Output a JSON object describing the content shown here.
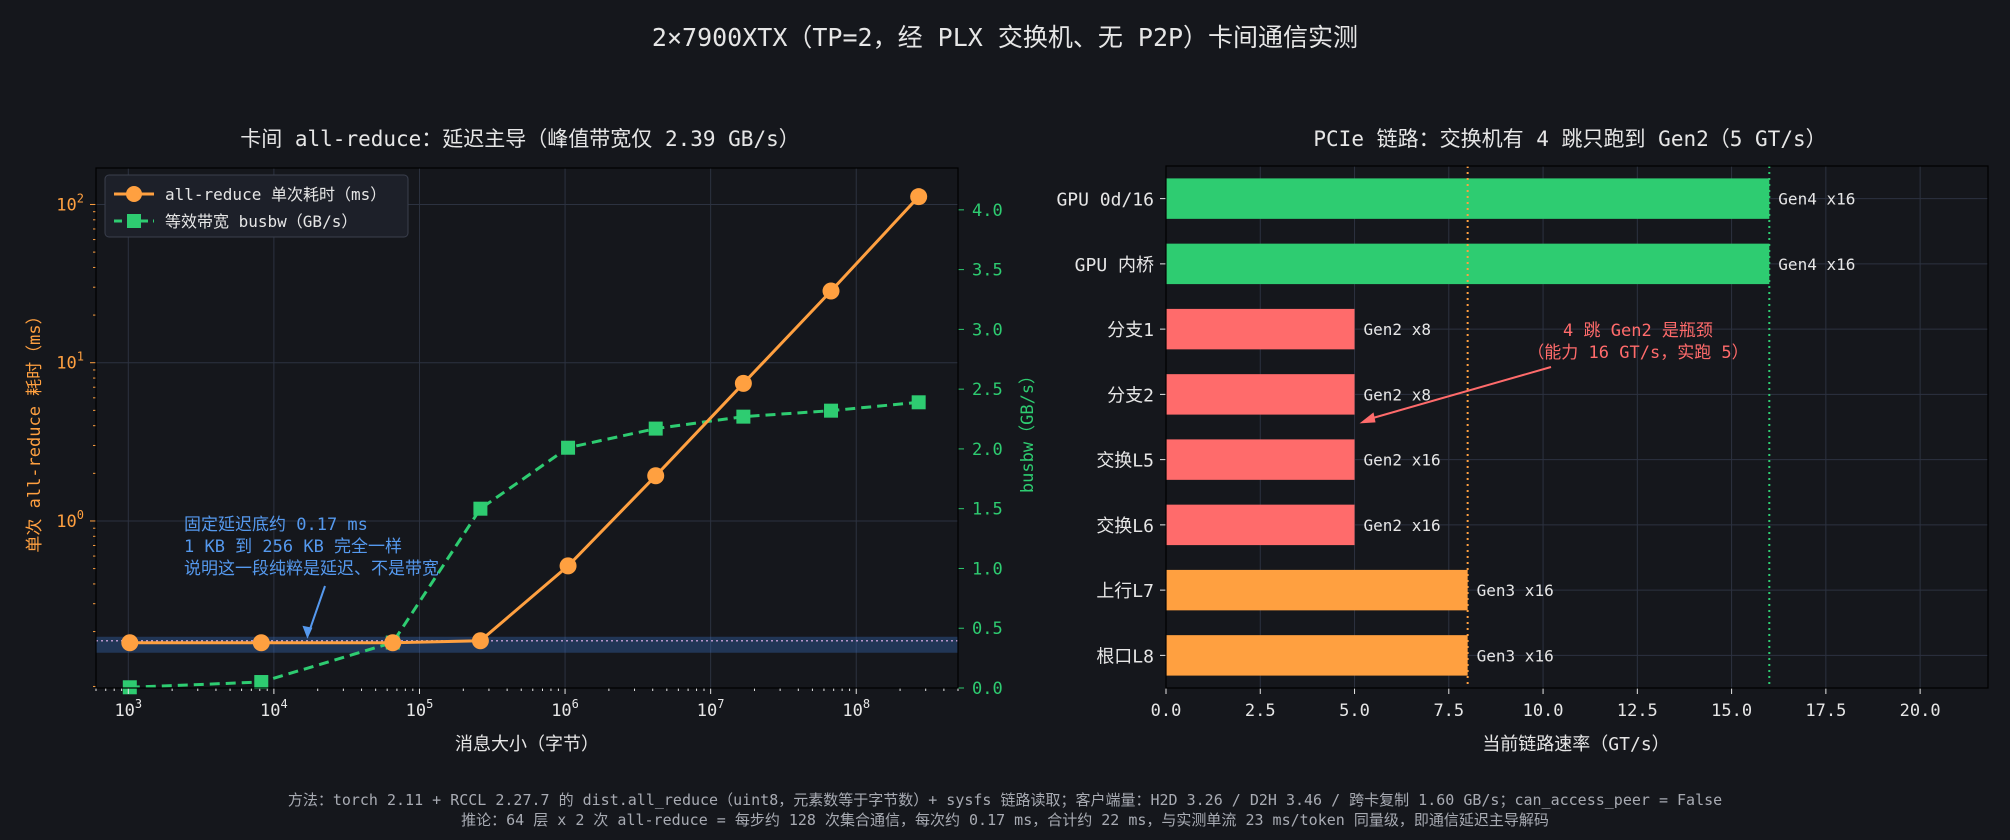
{
  "figure": {
    "title": "2×7900XTX（TP=2，经 PLX 交换机、无 P2P）卡间通信实测",
    "footer_line1": "方法：torch 2.11 + RCCL 2.27.7 的 dist.all_reduce（uint8，元素数等于字节数）+ sysfs 链路读取；客户端量：H2D 3.26 / D2H 3.46 / 跨卡复制 1.60 GB/s；can_access_peer = False",
    "footer_line2": "推论：64 层 x 2 次 all-reduce = 每步约 128 次集合通信，每次约 0.17 ms，合计约 22 ms，与实测单流 23 ms/token 同量级，即通信延迟主导解码",
    "colors": {
      "background": "#15171c",
      "axes_bg": "#15171c",
      "grid": "#2c3240",
      "orange": "#ffa040",
      "green": "#2ecc71",
      "red": "#ff6b6b",
      "blue": "#5599ee",
      "text": "#e6e6e6"
    }
  },
  "chart_data": [
    {
      "type": "line",
      "title": "卡间 all-reduce：延迟主导（峰值带宽仅 2.39 GB/s）",
      "xlabel": "消息大小（字节）",
      "ylabel_left": "单次 all-reduce 耗时（ms）",
      "ylabel_right": "busbw（GB/s）",
      "x_scale": "log",
      "y_left_scale": "log",
      "x_ticks": [
        "10^3",
        "10^4",
        "10^5",
        "10^6",
        "10^7",
        "10^8"
      ],
      "y_left_ticks": [
        "10^0",
        "10^1",
        "10^2"
      ],
      "y_right_ticks": [
        "0.0",
        "0.5",
        "1.0",
        "1.5",
        "2.0",
        "2.5",
        "3.0",
        "3.5",
        "4.0"
      ],
      "xlim": [
        600,
        500000000
      ],
      "ylim_left": [
        0.088,
        170
      ],
      "ylim_right": [
        0,
        4.35
      ],
      "grid": true,
      "legend_position": "upper-left",
      "series": [
        {
          "name": "all-reduce 单次耗时（ms）",
          "axis": "left",
          "color": "#ffa040",
          "style": "solid",
          "marker": "circle",
          "x": [
            1024,
            8192,
            65536,
            262144,
            1048576,
            4194304,
            16777216,
            67108864,
            268435456
          ],
          "y": [
            0.17,
            0.17,
            0.17,
            0.175,
            0.52,
            1.93,
            7.4,
            28.4,
            112
          ]
        },
        {
          "name": "等效带宽 busbw（GB/s）",
          "axis": "right",
          "color": "#2ecc71",
          "style": "dashed",
          "marker": "square",
          "x": [
            1024,
            8192,
            65536,
            262144,
            1048576,
            4194304,
            16777216,
            67108864,
            268435456
          ],
          "y": [
            0.006,
            0.05,
            0.38,
            1.5,
            2.01,
            2.17,
            2.27,
            2.32,
            2.39
          ]
        }
      ],
      "floor_band_ms": 0.17,
      "annotation": {
        "lines": [
          "固定延迟底约 0.17 ms",
          "1 KB 到 256 KB 完全一样",
          "说明这一段纯粹是延迟、不是带宽"
        ],
        "arrow_to": {
          "x": 17000,
          "y": 0.17
        }
      }
    },
    {
      "type": "bar",
      "orientation": "horizontal",
      "title": "PCIe 链路：交换机有 4 跳只跑到 Gen2（5 GT/s）",
      "xlabel": "当前链路速率（GT/s）",
      "x_ticks": [
        "0.0",
        "2.5",
        "5.0",
        "7.5",
        "10.0",
        "12.5",
        "15.0",
        "17.5",
        "20.0"
      ],
      "xlim": [
        0,
        21.8
      ],
      "grid": true,
      "categories": [
        "GPU 0d/16",
        "GPU 内桥",
        "分支1",
        "分支2",
        "交换L5",
        "交换L6",
        "上行L7",
        "根口L8"
      ],
      "values": [
        16,
        16,
        5,
        5,
        5,
        5,
        8,
        8
      ],
      "bar_labels": [
        "Gen4 x16",
        "Gen4 x16",
        "Gen2 x8",
        "Gen2 x8",
        "Gen2 x16",
        "Gen2 x16",
        "Gen3 x16",
        "Gen3 x16"
      ],
      "bar_colors": [
        "#2ecc71",
        "#2ecc71",
        "#ff6b6b",
        "#ff6b6b",
        "#ff6b6b",
        "#ff6b6b",
        "#ffa040",
        "#ffa040"
      ],
      "ref_lines": [
        {
          "x": 8,
          "color": "#ffa040"
        },
        {
          "x": 16,
          "color": "#2ecc71"
        }
      ],
      "annotation": {
        "lines": [
          "4 跳 Gen2 是瓶颈",
          "（能力 16 GT/s，实跑 5）"
        ],
        "arrow_to_category": "分支2",
        "arrow_to_x": 5
      }
    }
  ]
}
